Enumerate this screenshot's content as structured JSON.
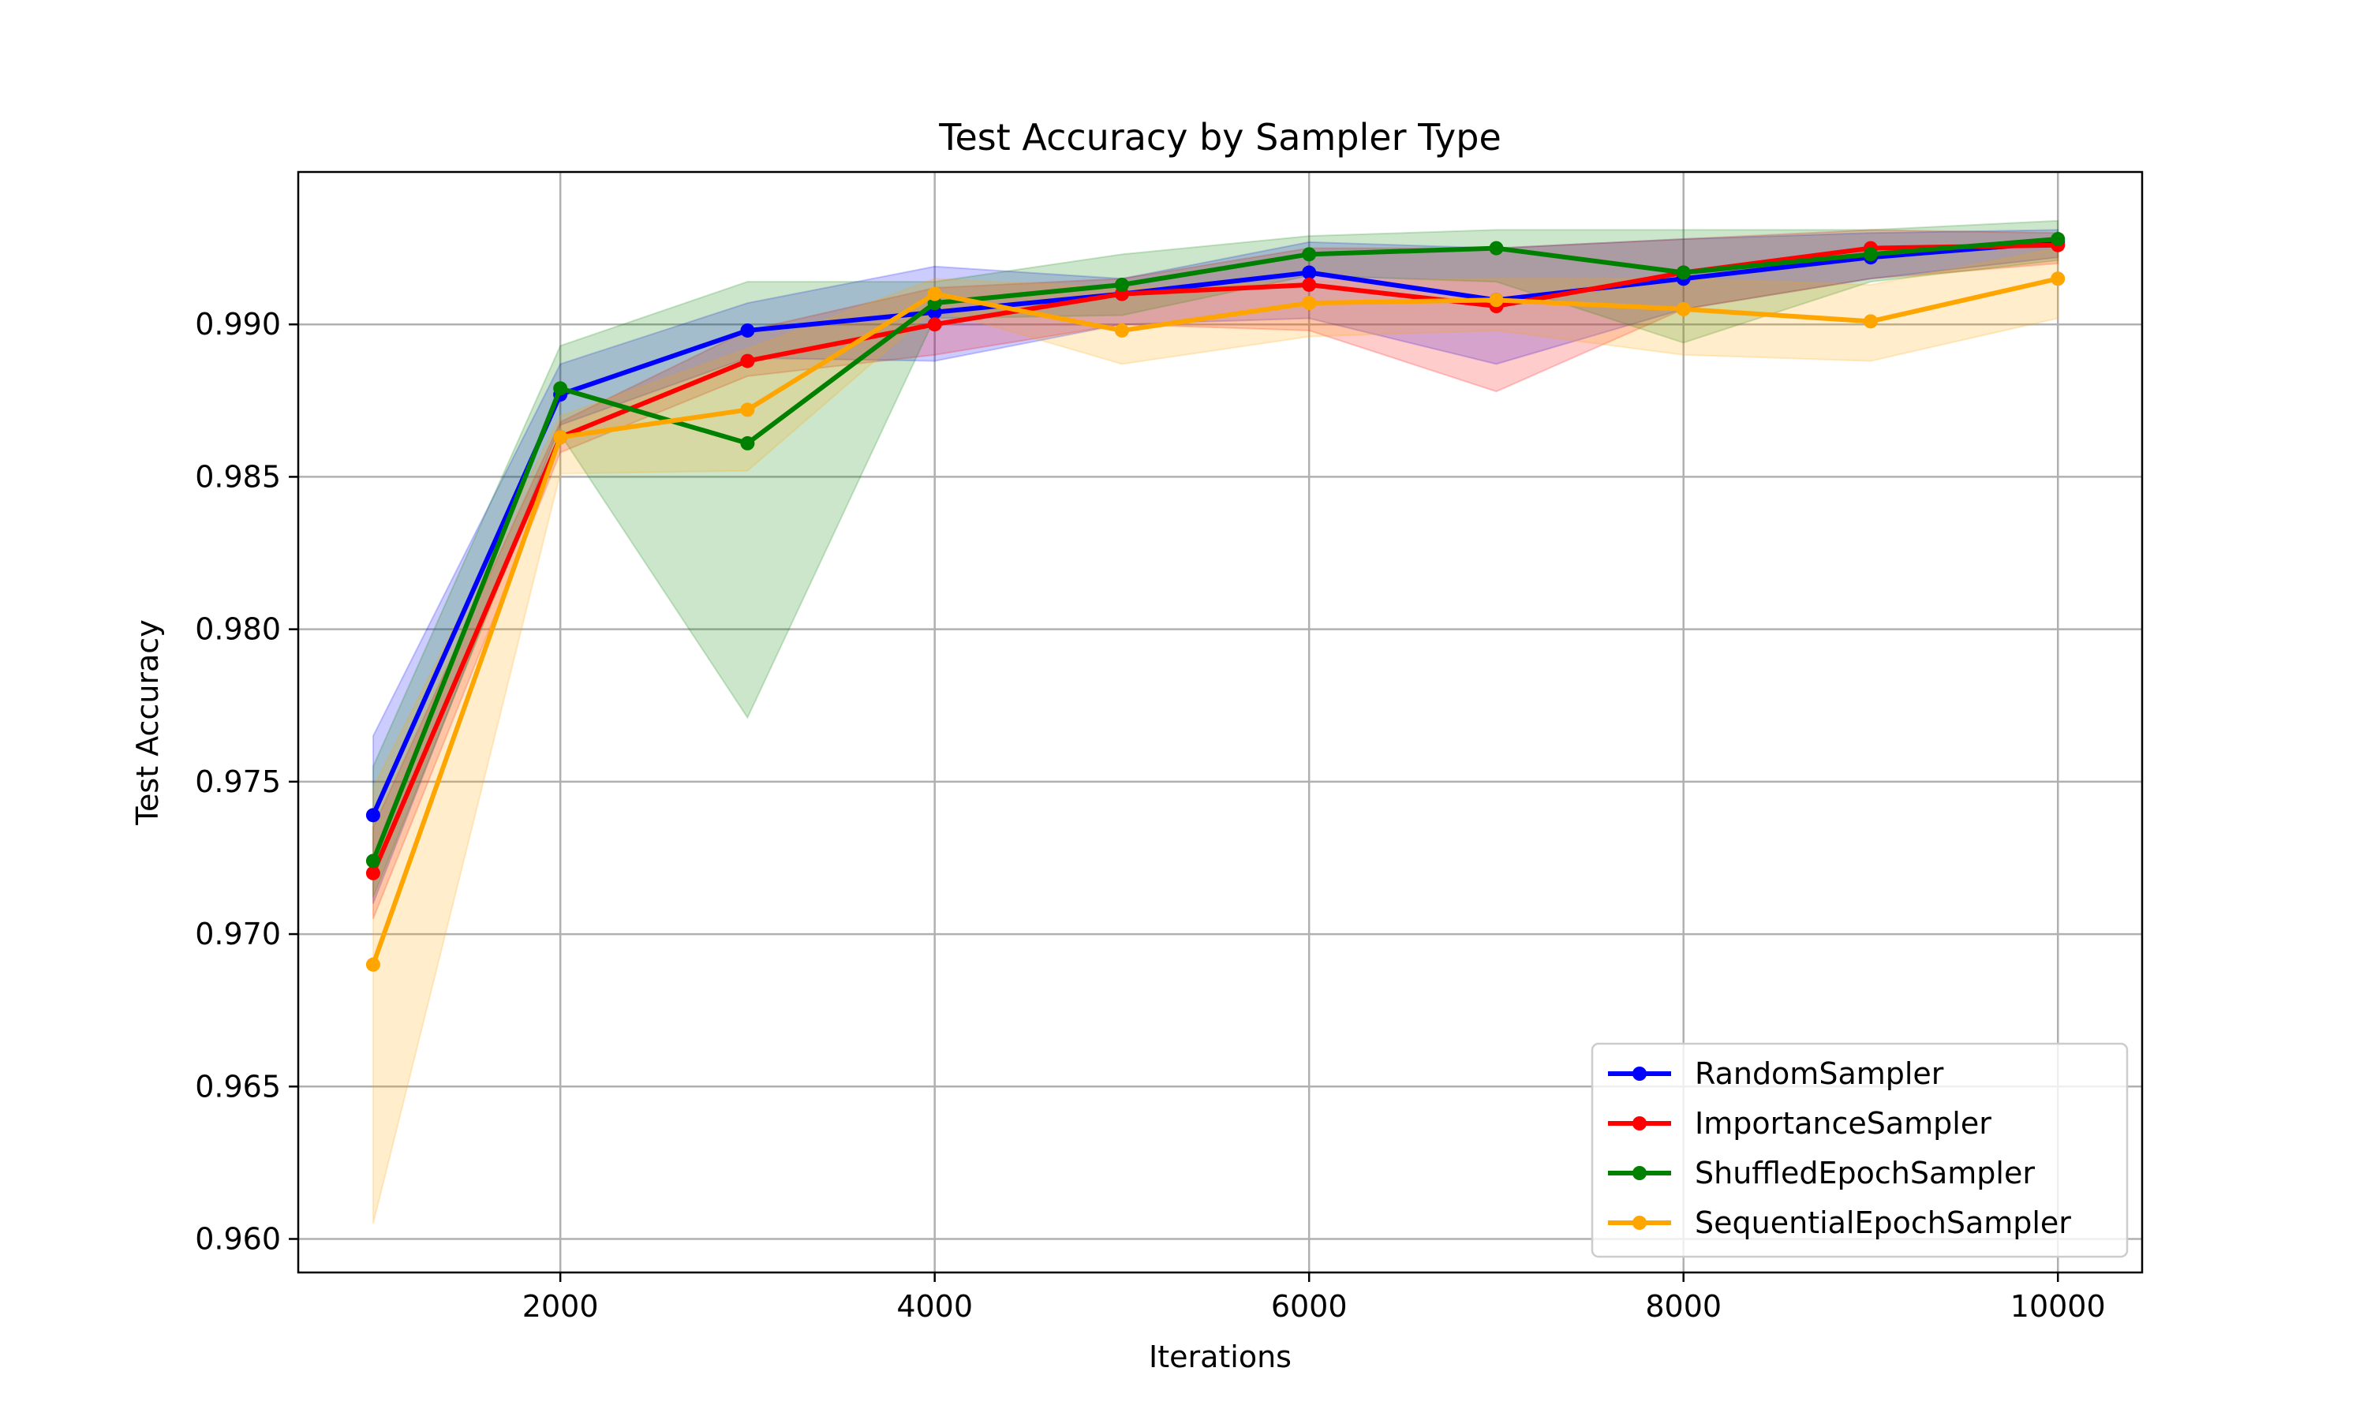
{
  "chart_data": {
    "type": "line",
    "title": "Test Accuracy by Sampler Type",
    "xlabel": "Iterations",
    "ylabel": "Test Accuracy",
    "xlim": [
      600,
      10450
    ],
    "ylim": [
      0.9589,
      0.995
    ],
    "xticks": [
      2000,
      4000,
      6000,
      8000,
      10000
    ],
    "yticks": [
      0.96,
      0.965,
      0.97,
      0.975,
      0.98,
      0.985,
      0.99
    ],
    "grid": true,
    "legend_position": "lower right",
    "x": [
      1000,
      2000,
      3000,
      4000,
      5000,
      6000,
      7000,
      8000,
      9000,
      10000
    ],
    "series": [
      {
        "name": "RandomSampler",
        "color": "#0000ff",
        "values": [
          0.9739,
          0.9877,
          0.9898,
          0.9904,
          0.991,
          0.9917,
          0.9908,
          0.9915,
          0.9922,
          0.9927
        ],
        "upper": [
          0.9765,
          0.9887,
          0.9907,
          0.9919,
          0.9915,
          0.9927,
          0.9925,
          0.9928,
          0.993,
          0.9931
        ],
        "lower": [
          0.971,
          0.9867,
          0.9889,
          0.9888,
          0.99,
          0.9902,
          0.9887,
          0.9905,
          0.9915,
          0.9922
        ]
      },
      {
        "name": "ImportanceSampler",
        "color": "#ff0000",
        "values": [
          0.972,
          0.9863,
          0.9888,
          0.99,
          0.991,
          0.9913,
          0.9906,
          0.9917,
          0.9925,
          0.9926
        ],
        "upper": [
          0.9735,
          0.9868,
          0.9898,
          0.9912,
          0.9915,
          0.9925,
          0.9925,
          0.9928,
          0.9931,
          0.993
        ],
        "lower": [
          0.9705,
          0.9858,
          0.9883,
          0.989,
          0.99,
          0.9898,
          0.9878,
          0.9905,
          0.9915,
          0.992
        ]
      },
      {
        "name": "ShuffledEpochSampler",
        "color": "#008000",
        "values": [
          0.9724,
          0.9879,
          0.9861,
          0.9907,
          0.9913,
          0.9923,
          0.9925,
          0.9917,
          0.9923,
          0.9928
        ],
        "upper": [
          0.9755,
          0.9893,
          0.9914,
          0.9914,
          0.9923,
          0.9929,
          0.9931,
          0.9931,
          0.9931,
          0.9934
        ],
        "lower": [
          0.9712,
          0.9864,
          0.9771,
          0.9902,
          0.9903,
          0.9916,
          0.9914,
          0.9894,
          0.9914,
          0.9921
        ]
      },
      {
        "name": "SequentialEpochSampler",
        "color": "#ffa500",
        "values": [
          0.969,
          0.9863,
          0.9872,
          0.991,
          0.9898,
          0.9907,
          0.9908,
          0.9905,
          0.9901,
          0.9915
        ],
        "upper": [
          0.9748,
          0.987,
          0.9892,
          0.9915,
          0.9912,
          0.9914,
          0.9915,
          0.9915,
          0.9913,
          0.9925
        ],
        "lower": [
          0.9605,
          0.9851,
          0.9852,
          0.9905,
          0.9887,
          0.9896,
          0.9898,
          0.989,
          0.9888,
          0.9902
        ]
      }
    ]
  }
}
